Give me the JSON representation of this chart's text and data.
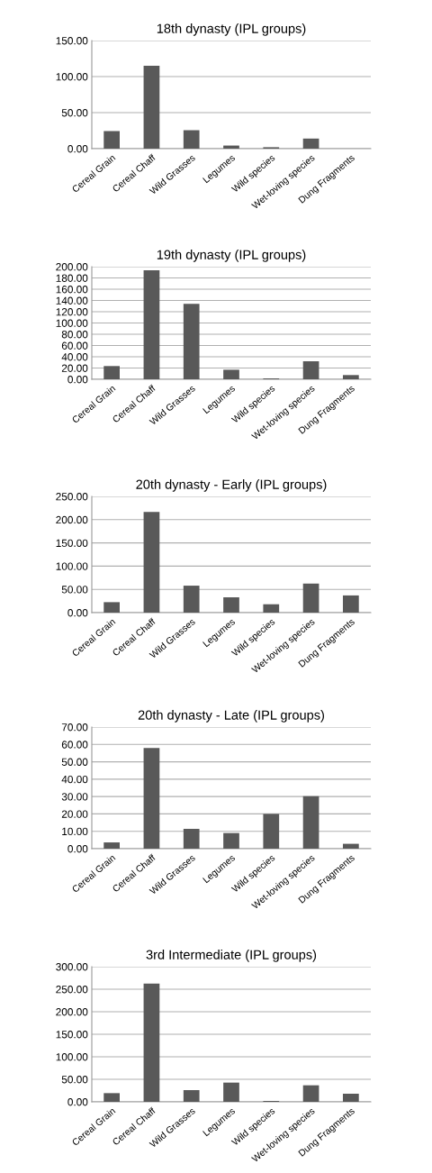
{
  "chart_data": [
    {
      "type": "bar",
      "title": "18th dynasty (IPL groups)",
      "categories": [
        "Cereal Grain",
        "Cereal Chaff",
        "Wild Grasses",
        "Legumes",
        "Wild species",
        "Wet-loving species",
        "Dung Fragments"
      ],
      "values": [
        24.4,
        115,
        25.6,
        4.3,
        2,
        14,
        0
      ],
      "color": "#595959",
      "ylim": [
        0,
        150
      ],
      "yticks": [
        {
          "value": 0,
          "label": "0.00"
        },
        {
          "value": 50,
          "label": "50.00"
        },
        {
          "value": 100,
          "label": "100.00"
        },
        {
          "value": 150,
          "label": "150.00"
        }
      ],
      "grid": "y"
    },
    {
      "type": "bar",
      "title": "19th dynasty (IPL groups)",
      "categories": [
        "Cereal Grain",
        "Cereal Chaff",
        "Wild Grasses",
        "Legumes",
        "Wild species",
        "Wet-loving species",
        "Dung Fragments"
      ],
      "values": [
        23.5,
        193.6,
        134,
        17,
        1.6,
        32,
        7.5
      ],
      "color": "#595959",
      "ylim": [
        0,
        200
      ],
      "yticks": [
        {
          "value": 0,
          "label": "0.00"
        },
        {
          "value": 20,
          "label": "20.00"
        },
        {
          "value": 40,
          "label": "40.00"
        },
        {
          "value": 60,
          "label": "60.00"
        },
        {
          "value": 80,
          "label": "80.00"
        },
        {
          "value": 100,
          "label": "100.00"
        },
        {
          "value": 120,
          "label": "120.00"
        },
        {
          "value": 140,
          "label": "140.00"
        },
        {
          "value": 160,
          "label": "160.00"
        },
        {
          "value": 180,
          "label": "180.00"
        },
        {
          "value": 200,
          "label": "200.00"
        }
      ],
      "grid": "y"
    },
    {
      "type": "bar",
      "title": "20th dynasty - Early (IPL groups)",
      "categories": [
        "Cereal Grain",
        "Cereal Chaff",
        "Wild Grasses",
        "Legumes",
        "Wild species",
        "Wet-loving species",
        "Dung Fragments"
      ],
      "values": [
        22.5,
        216.5,
        58,
        33,
        18,
        62.5,
        37
      ],
      "color": "#595959",
      "ylim": [
        0,
        250
      ],
      "yticks": [
        {
          "value": 0,
          "label": "0.00"
        },
        {
          "value": 50,
          "label": "50.00"
        },
        {
          "value": 100,
          "label": "100.00"
        },
        {
          "value": 150,
          "label": "150.00"
        },
        {
          "value": 200,
          "label": "200.00"
        },
        {
          "value": 250,
          "label": "250.00"
        }
      ],
      "grid": "y"
    },
    {
      "type": "bar",
      "title": "20th dynasty - Late (IPL groups)",
      "categories": [
        "Cereal Grain",
        "Cereal Chaff",
        "Wild Grasses",
        "Legumes",
        "Wild species",
        "Wet-loving species",
        "Dung Fragments"
      ],
      "values": [
        3.6,
        58,
        11.4,
        9,
        20,
        30.2,
        2.8
      ],
      "color": "#595959",
      "ylim": [
        0,
        70
      ],
      "yticks": [
        {
          "value": 0,
          "label": "0.00"
        },
        {
          "value": 10,
          "label": "10.00"
        },
        {
          "value": 20,
          "label": "20.00"
        },
        {
          "value": 30,
          "label": "30.00"
        },
        {
          "value": 40,
          "label": "40.00"
        },
        {
          "value": 50,
          "label": "50.00"
        },
        {
          "value": 60,
          "label": "60.00"
        },
        {
          "value": 70,
          "label": "70.00"
        }
      ],
      "grid": "y"
    },
    {
      "type": "bar",
      "title": "3rd Intermediate (IPL groups)",
      "categories": [
        "Cereal Grain",
        "Cereal Chaff",
        "Wild Grasses",
        "Legumes",
        "Wild species",
        "Wet-loving species",
        "Dung Fragments"
      ],
      "values": [
        19.3,
        262.7,
        26,
        42.7,
        2,
        36.7,
        18
      ],
      "color": "#595959",
      "ylim": [
        0,
        300
      ],
      "yticks": [
        {
          "value": 0,
          "label": "0.00"
        },
        {
          "value": 50,
          "label": "50.00"
        },
        {
          "value": 100,
          "label": "100.00"
        },
        {
          "value": 150,
          "label": "150.00"
        },
        {
          "value": 200,
          "label": "200.00"
        },
        {
          "value": 250,
          "label": "250.00"
        },
        {
          "value": 300,
          "label": "300.00"
        }
      ],
      "grid": "y"
    }
  ]
}
